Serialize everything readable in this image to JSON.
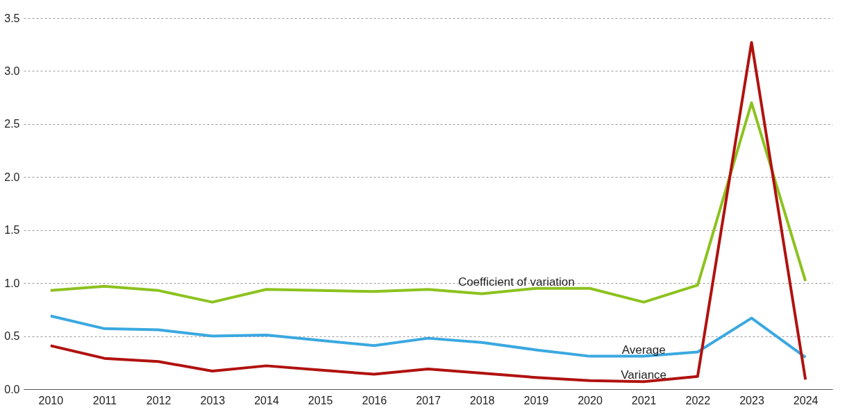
{
  "chart_data": {
    "type": "line",
    "categories": [
      "2010",
      "2011",
      "2012",
      "2013",
      "2014",
      "2015",
      "2016",
      "2017",
      "2018",
      "2019",
      "2020",
      "2021",
      "2022",
      "2023",
      "2024"
    ],
    "series": [
      {
        "name": "Coefficient of variation",
        "color": "#8cc21f",
        "values": [
          0.93,
          0.97,
          0.93,
          0.82,
          0.94,
          0.93,
          0.92,
          0.94,
          0.9,
          0.95,
          0.95,
          0.82,
          0.98,
          2.7,
          1.02
        ]
      },
      {
        "name": "Average",
        "color": "#3aa8e0",
        "values": [
          0.69,
          0.57,
          0.56,
          0.5,
          0.51,
          0.46,
          0.41,
          0.48,
          0.44,
          0.37,
          0.31,
          0.31,
          0.35,
          0.67,
          0.3
        ]
      },
      {
        "name": "Variance",
        "color": "#b0120f",
        "values": [
          0.41,
          0.29,
          0.26,
          0.17,
          0.22,
          0.18,
          0.14,
          0.19,
          0.15,
          0.11,
          0.08,
          0.07,
          0.12,
          3.27,
          0.09
        ]
      }
    ],
    "ylim": [
      0,
      3.5
    ],
    "yticks": [
      {
        "value": 0,
        "label": "0.0"
      },
      {
        "value": 0.5,
        "label": "0.5"
      },
      {
        "value": 1,
        "label": "1.0"
      },
      {
        "value": 1.5,
        "label": "1.5"
      },
      {
        "value": 2,
        "label": "2.0"
      },
      {
        "value": 2.5,
        "label": "2.5"
      },
      {
        "value": 3,
        "label": "3.0"
      },
      {
        "value": 3.5,
        "label": "3.5"
      }
    ],
    "grid": "y",
    "legend": false,
    "marker": "none",
    "line_style": "solid"
  }
}
